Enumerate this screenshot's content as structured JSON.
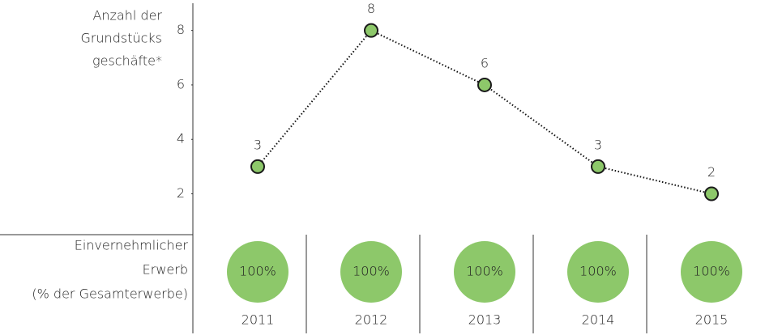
{
  "chart_data": [
    {
      "type": "line",
      "y_label_lines": [
        "Anzahl der",
        "Grundstücks",
        "geschäfte*"
      ],
      "categories": [
        "2011",
        "2012",
        "2013",
        "2014",
        "2015"
      ],
      "values": [
        3,
        8,
        6,
        3,
        2
      ],
      "color": "#8dc86a",
      "ylim": [
        0.5,
        9
      ],
      "yticks": [
        2,
        4,
        6,
        8
      ]
    },
    {
      "type": "circle-row",
      "label_lines": [
        "Einvernehmlicher",
        "Erwerb",
        "(% der Gesamterwerbe)"
      ],
      "values": [
        100,
        100,
        100,
        100,
        100
      ],
      "value_labels": [
        "100%",
        "100%",
        "100%",
        "100%",
        "100%"
      ],
      "color": "#8dc86a"
    }
  ]
}
